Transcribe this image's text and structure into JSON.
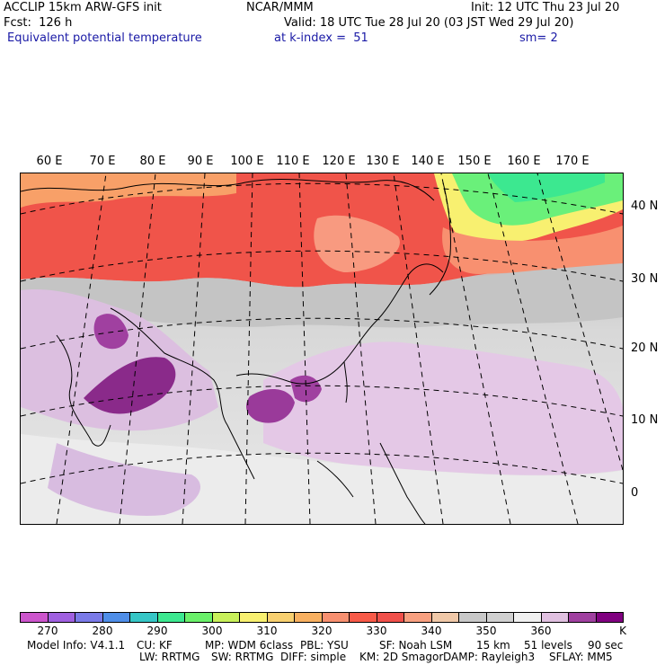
{
  "header": {
    "left1": "ACCLIP 15km ARW-GFS init",
    "center1": "NCAR/MMM",
    "right1": "Init: 12 UTC Thu 23 Jul 20",
    "fcst": "Fcst:  126 h",
    "valid": "Valid: 18 UTC Tue 28 Jul 20 (03 JST Wed 29 Jul 20)",
    "field": "Equivalent potential temperature",
    "level": "at k-index =  51",
    "smooth": "sm= 2"
  },
  "map": {
    "lon_labels": [
      "60 E",
      "70 E",
      "80 E",
      "90 E",
      "100 E",
      "110 E",
      "120 E",
      "130 E",
      "140 E",
      "150 E",
      "160 E",
      "170 E"
    ],
    "lat_labels": [
      "40 N",
      "30 N",
      "20 N",
      "10 N",
      "0"
    ]
  },
  "colorbar": {
    "colors": [
      "#cc55cc",
      "#a060e0",
      "#7a7ae8",
      "#4f8ee8",
      "#36c6c6",
      "#3ce890",
      "#6af06a",
      "#c8f05a",
      "#f8f070",
      "#f8d070",
      "#f8b060",
      "#f89070",
      "#f85a48",
      "#f0504a",
      "#f8a080",
      "#f0c8a8",
      "#c8c8c8",
      "#d0d0d0",
      "#f0f0f0",
      "#e0c0e0",
      "#a040a0",
      "#800080"
    ],
    "tick_labels": [
      "270",
      "280",
      "290",
      "300",
      "310",
      "320",
      "330",
      "340",
      "350",
      "360"
    ],
    "unit": "K"
  },
  "footer": {
    "line1_a": "Model Info: V4.1.1",
    "line1_b": "CU: KF",
    "line1_c": "MP: WDM 6class",
    "line1_d": "PBL: YSU",
    "line1_e": "SF: Noah LSM",
    "line1_f": "15 km",
    "line1_g": "51 levels",
    "line1_h": "90 sec",
    "line2_a": "LW: RRTMG",
    "line2_b": "SW: RRTMG",
    "line2_c": "DIFF: simple",
    "line2_d": "KM: 2D Smagor",
    "line2_e": "DAMP: Rayleigh3",
    "line2_f": "SFLAY: MM5"
  }
}
